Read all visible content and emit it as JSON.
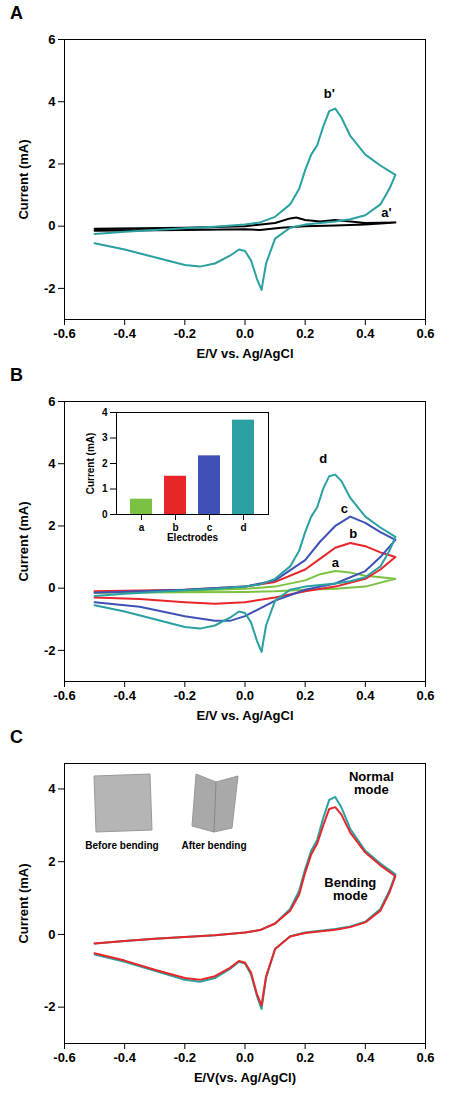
{
  "chart_data": [
    {
      "type": "line",
      "panel": "A",
      "x_label": "E/V vs. Ag/AgCl",
      "y_label": "Current (mA)",
      "xlim": [
        -0.6,
        0.6
      ],
      "xticks": [
        -0.6,
        -0.4,
        -0.2,
        {
          "value": 0,
          "label": "0.0"
        },
        0.2,
        0.4,
        0.6
      ],
      "ylim": [
        -3,
        6
      ],
      "yticks": [
        -2,
        0,
        2,
        4,
        6
      ],
      "grid": false,
      "series": [
        {
          "name": "a'",
          "color": "#000000",
          "label_at": [
            0.47,
            0.42
          ],
          "x": [
            -0.5,
            -0.2,
            0,
            0.1,
            0.15,
            0.17,
            0.2,
            0.25,
            0.3,
            0.4,
            0.5,
            0.4,
            0.3,
            0.2,
            0.12,
            0.05,
            0,
            -0.2,
            -0.5
          ],
          "values": [
            -0.08,
            -0.05,
            0,
            0.1,
            0.25,
            0.28,
            0.2,
            0.15,
            0.2,
            0.1,
            0.12,
            0.05,
            0.02,
            0,
            -0.05,
            -0.12,
            -0.1,
            -0.12,
            -0.15
          ]
        },
        {
          "name": "b'",
          "color": "#2aa0a0",
          "label_at": [
            0.28,
            4.25
          ],
          "x": [
            -0.5,
            -0.4,
            -0.3,
            -0.2,
            -0.1,
            0,
            0.05,
            0.1,
            0.15,
            0.18,
            0.2,
            0.22,
            0.24,
            0.26,
            0.28,
            0.3,
            0.32,
            0.35,
            0.4,
            0.45,
            0.5,
            0.48,
            0.45,
            0.4,
            0.35,
            0.3,
            0.2,
            0.15,
            0.1,
            0.07,
            0.055,
            0.04,
            0.02,
            0,
            -0.02,
            -0.05,
            -0.1,
            -0.15,
            -0.2,
            -0.3,
            -0.4,
            -0.5
          ],
          "values": [
            -0.25,
            -0.18,
            -0.12,
            -0.07,
            -0.02,
            0.05,
            0.12,
            0.3,
            0.7,
            1.2,
            1.8,
            2.3,
            2.6,
            3.2,
            3.7,
            3.78,
            3.5,
            2.9,
            2.3,
            1.95,
            1.65,
            1.2,
            0.7,
            0.35,
            0.22,
            0.15,
            0.05,
            -0.05,
            -0.4,
            -1.2,
            -2.05,
            -1.7,
            -1.1,
            -0.8,
            -0.75,
            -0.95,
            -1.2,
            -1.3,
            -1.25,
            -1.0,
            -0.75,
            -0.55
          ]
        }
      ]
    },
    {
      "type": "line",
      "panel": "B",
      "x_label": "E/V vs. Ag/AgCl",
      "y_label": "Current (mA)",
      "xlim": [
        -0.6,
        0.6
      ],
      "xticks": [
        -0.6,
        -0.4,
        -0.2,
        {
          "value": 0,
          "label": "0.0"
        },
        0.2,
        0.4,
        0.6
      ],
      "ylim": [
        -3,
        6
      ],
      "yticks": [
        -2,
        0,
        2,
        4,
        6
      ],
      "grid": false,
      "series": [
        {
          "name": "a",
          "color": "#7cc242",
          "label_at": [
            0.3,
            0.8
          ],
          "x": [
            -0.5,
            -0.2,
            0,
            0.1,
            0.2,
            0.25,
            0.3,
            0.35,
            0.4,
            0.5,
            0.4,
            0.3,
            0.2,
            0.1,
            0,
            -0.2,
            -0.5
          ],
          "values": [
            -0.12,
            -0.08,
            -0.02,
            0.05,
            0.25,
            0.45,
            0.55,
            0.5,
            0.4,
            0.3,
            0.05,
            -0.02,
            -0.05,
            -0.1,
            -0.12,
            -0.13,
            -0.15
          ]
        },
        {
          "name": "b",
          "color": "#e8262a",
          "label_at": [
            0.36,
            1.75
          ],
          "x": [
            -0.5,
            -0.2,
            0,
            0.1,
            0.2,
            0.25,
            0.3,
            0.35,
            0.4,
            0.45,
            0.5,
            0.45,
            0.4,
            0.3,
            0.2,
            0.1,
            0,
            -0.1,
            -0.2,
            -0.35,
            -0.5
          ],
          "values": [
            -0.1,
            -0.05,
            0.05,
            0.2,
            0.6,
            0.95,
            1.3,
            1.45,
            1.35,
            1.15,
            1.0,
            0.6,
            0.3,
            0.05,
            -0.1,
            -0.3,
            -0.45,
            -0.5,
            -0.45,
            -0.35,
            -0.3
          ]
        },
        {
          "name": "c",
          "color": "#3f51b5",
          "label_at": [
            0.33,
            2.55
          ],
          "x": [
            -0.5,
            -0.2,
            0,
            0.1,
            0.2,
            0.25,
            0.3,
            0.35,
            0.4,
            0.45,
            0.5,
            0.45,
            0.4,
            0.3,
            0.2,
            0.1,
            0,
            -0.05,
            -0.1,
            -0.2,
            -0.35,
            -0.5
          ],
          "values": [
            -0.15,
            -0.05,
            0.05,
            0.25,
            0.9,
            1.5,
            2.0,
            2.3,
            2.1,
            1.8,
            1.55,
            1.0,
            0.55,
            0.15,
            -0.05,
            -0.4,
            -0.9,
            -1.05,
            -1.05,
            -0.9,
            -0.6,
            -0.45
          ]
        },
        {
          "name": "d",
          "color": "#2aa0a0",
          "label_at": [
            0.26,
            4.15
          ],
          "x": [
            -0.5,
            -0.4,
            -0.3,
            -0.2,
            -0.1,
            0,
            0.05,
            0.1,
            0.15,
            0.18,
            0.2,
            0.22,
            0.24,
            0.26,
            0.28,
            0.3,
            0.32,
            0.35,
            0.4,
            0.45,
            0.5,
            0.48,
            0.45,
            0.4,
            0.35,
            0.3,
            0.2,
            0.15,
            0.1,
            0.07,
            0.055,
            0.04,
            0.02,
            0,
            -0.02,
            -0.05,
            -0.1,
            -0.15,
            -0.2,
            -0.3,
            -0.4,
            -0.5
          ],
          "values": [
            -0.25,
            -0.18,
            -0.12,
            -0.07,
            -0.02,
            0.05,
            0.12,
            0.3,
            0.7,
            1.2,
            1.8,
            2.3,
            2.6,
            3.2,
            3.6,
            3.65,
            3.45,
            2.9,
            2.3,
            1.95,
            1.65,
            1.2,
            0.7,
            0.35,
            0.22,
            0.15,
            0.05,
            -0.05,
            -0.4,
            -1.2,
            -2.05,
            -1.7,
            -1.1,
            -0.8,
            -0.75,
            -0.95,
            -1.2,
            -1.3,
            -1.25,
            -1.0,
            -0.75,
            -0.55
          ]
        }
      ],
      "inset": {
        "type": "bar",
        "x_label": "Electrodes",
        "y_label": "Current (mA)",
        "categories": [
          "a",
          "b",
          "c",
          "d"
        ],
        "values": [
          0.6,
          1.5,
          2.3,
          3.7
        ],
        "colors": [
          "#7cc242",
          "#e8262a",
          "#3f51b5",
          "#2aa0a0"
        ],
        "ylim": [
          0,
          4
        ],
        "yticks": [
          0,
          1,
          2,
          3,
          4
        ]
      }
    },
    {
      "type": "line",
      "panel": "C",
      "x_label": "E/V(vs. Ag/AgCl)",
      "y_label": "Current (mA)",
      "xlim": [
        -0.6,
        0.6
      ],
      "xticks": [
        -0.6,
        -0.4,
        -0.2,
        {
          "value": 0,
          "label": "0.0"
        },
        0.2,
        0.4,
        0.6
      ],
      "ylim": [
        -3,
        4.7
      ],
      "yticks": [
        -2,
        0,
        2,
        4
      ],
      "grid": false,
      "images": [
        "Before bending",
        "After bending"
      ],
      "series": [
        {
          "name": "Normal mode",
          "color": "#2aa0a0",
          "label_at": [
            0.42,
            4.15
          ],
          "x": [
            -0.5,
            -0.4,
            -0.3,
            -0.2,
            -0.1,
            0,
            0.05,
            0.1,
            0.15,
            0.18,
            0.2,
            0.22,
            0.24,
            0.26,
            0.28,
            0.3,
            0.32,
            0.35,
            0.4,
            0.45,
            0.5,
            0.48,
            0.45,
            0.4,
            0.35,
            0.3,
            0.2,
            0.15,
            0.1,
            0.07,
            0.055,
            0.04,
            0.02,
            0,
            -0.02,
            -0.05,
            -0.1,
            -0.15,
            -0.2,
            -0.3,
            -0.4,
            -0.5
          ],
          "values": [
            -0.25,
            -0.18,
            -0.12,
            -0.07,
            -0.02,
            0.05,
            0.12,
            0.3,
            0.7,
            1.2,
            1.8,
            2.3,
            2.6,
            3.2,
            3.7,
            3.78,
            3.5,
            2.9,
            2.3,
            1.95,
            1.65,
            1.2,
            0.7,
            0.35,
            0.22,
            0.15,
            0.05,
            -0.05,
            -0.4,
            -1.2,
            -2.05,
            -1.7,
            -1.1,
            -0.8,
            -0.75,
            -0.95,
            -1.2,
            -1.3,
            -1.25,
            -1.0,
            -0.75,
            -0.55
          ]
        },
        {
          "name": "Bending mode",
          "color": "#e8262a",
          "label_at": [
            0.35,
            1.25
          ],
          "x": [
            -0.5,
            -0.4,
            -0.3,
            -0.2,
            -0.1,
            0,
            0.05,
            0.1,
            0.15,
            0.18,
            0.2,
            0.22,
            0.24,
            0.26,
            0.28,
            0.3,
            0.32,
            0.35,
            0.4,
            0.45,
            0.5,
            0.48,
            0.45,
            0.4,
            0.35,
            0.3,
            0.2,
            0.15,
            0.1,
            0.07,
            0.055,
            0.04,
            0.02,
            0,
            -0.02,
            -0.05,
            -0.1,
            -0.15,
            -0.2,
            -0.3,
            -0.4,
            -0.5
          ],
          "values": [
            -0.25,
            -0.18,
            -0.12,
            -0.07,
            -0.02,
            0.05,
            0.12,
            0.3,
            0.65,
            1.1,
            1.7,
            2.2,
            2.5,
            3.0,
            3.45,
            3.5,
            3.3,
            2.8,
            2.25,
            1.9,
            1.6,
            1.15,
            0.65,
            0.33,
            0.2,
            0.13,
            0.04,
            -0.06,
            -0.4,
            -1.15,
            -1.95,
            -1.65,
            -1.05,
            -0.78,
            -0.73,
            -0.92,
            -1.15,
            -1.25,
            -1.2,
            -0.97,
            -0.72,
            -0.52
          ]
        }
      ]
    }
  ]
}
